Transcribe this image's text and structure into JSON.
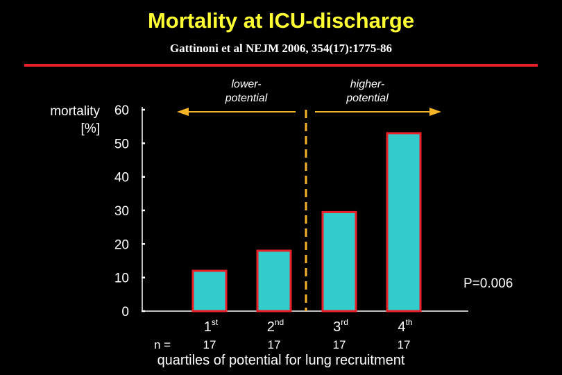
{
  "title": "Mortality at ICU-discharge",
  "subtitle": "Gattinoni et al NEJM 2006, 354(17):1775-86",
  "colors": {
    "title": "#ffff33",
    "rule": "#e8202a",
    "bar_fill": "#33cccc",
    "bar_border": "#e8202a",
    "arrow": "#f5b428",
    "divider": "#f5b428"
  },
  "chart_data": {
    "type": "bar",
    "ylabel_line1": "mortality",
    "ylabel_line2": "[%]",
    "xlabel": "quartiles of potential for lung recruitment",
    "ylim": [
      0,
      60
    ],
    "yticks": [
      "0",
      "10",
      "20",
      "30",
      "40",
      "50",
      "60"
    ],
    "categories": [
      {
        "base": "1",
        "sup": "st"
      },
      {
        "base": "2",
        "sup": "nd"
      },
      {
        "base": "3",
        "sup": "rd"
      },
      {
        "base": "4",
        "sup": "th"
      }
    ],
    "values": [
      12,
      18,
      29.5,
      53
    ],
    "n_label": "n  =",
    "n_values": [
      "17",
      "17",
      "17",
      "17"
    ],
    "regions": [
      {
        "line1": "lower-",
        "line2": "potential"
      },
      {
        "line1": "higher-",
        "line2": "potential"
      }
    ],
    "annotation": "P=0.006"
  }
}
